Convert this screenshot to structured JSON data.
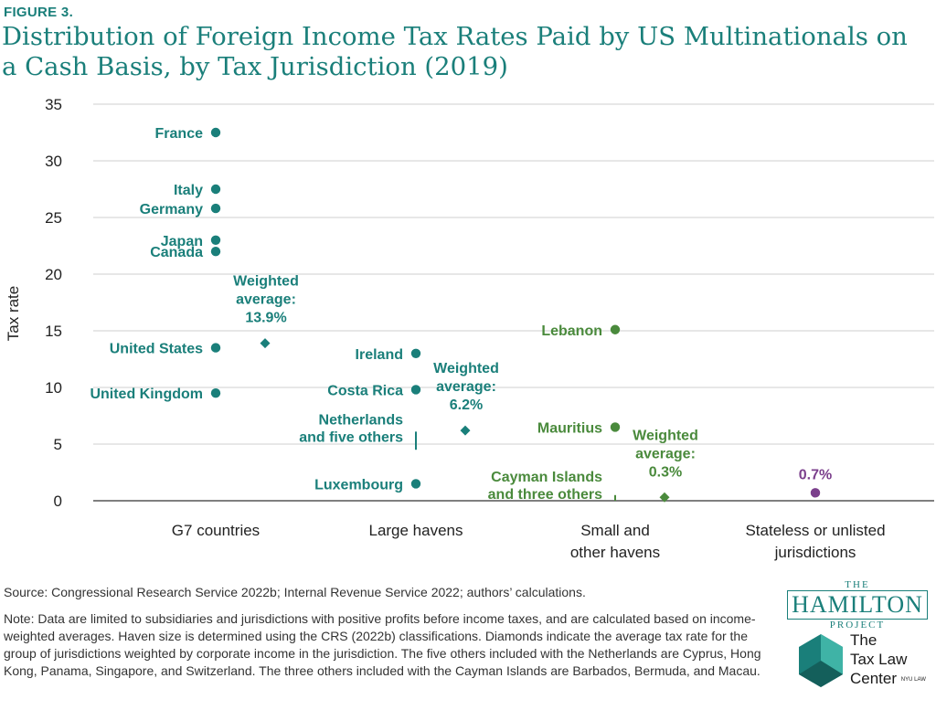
{
  "figure_label": "FIGURE 3.",
  "title": "Distribution of Foreign Income Tax Rates Paid by US Multinationals on a Cash Basis, by Tax Jurisdiction (2019)",
  "source": "Source: Congressional Research Service 2022b; Internal Revenue Service 2022; authors’ calculations.",
  "note": "Note: Data are limited to subsidiaries and jurisdictions with positive profits before income taxes, and are calculated based on income-weighted averages. Haven size is determined using the CRS (2022b) classifications. Diamonds indicate the average tax rate for the group of jurisdictions weighted by corporate income in the jurisdiction. The five others included with the Netherlands are Cyprus, Hong Kong, Panama, Singapore, and Switzerland. The three others included with the Cayman Islands are Barbados, Bermuda, and Macau.",
  "logos": {
    "hamilton_small_top": "THE",
    "hamilton_big": "HAMILTON",
    "hamilton_small_bottom": "PROJECT",
    "tlc_line1": "The",
    "tlc_line2": "Tax Law",
    "tlc_line3": "Center",
    "tlc_nyu": "NYU LAW"
  },
  "colors": {
    "teal": "#1a7f7a",
    "green": "#4a8a3c",
    "purple": "#7b3f8c",
    "grid": "#cfcfcf",
    "axis": "#555555"
  },
  "chart_data": {
    "type": "scatter",
    "ylabel": "Tax rate",
    "xlabel": "",
    "ylim": [
      0,
      35
    ],
    "yticks": [
      0,
      5,
      10,
      15,
      20,
      25,
      30,
      35
    ],
    "grid": true,
    "categories": [
      {
        "lines": [
          "G7 countries"
        ],
        "color": "#1a7f7a"
      },
      {
        "lines": [
          "Large havens"
        ],
        "color": "#1a7f7a"
      },
      {
        "lines": [
          "Small and",
          "other havens"
        ],
        "color": "#4a8a3c"
      },
      {
        "lines": [
          "Stateless or unlisted",
          "jurisdictions"
        ],
        "color": "#7b3f8c"
      }
    ],
    "points": [
      {
        "category": 0,
        "label": "France",
        "y": 32.5,
        "marker": "dot"
      },
      {
        "category": 0,
        "label": "Italy",
        "y": 27.5,
        "marker": "dot"
      },
      {
        "category": 0,
        "label": "Germany",
        "y": 25.8,
        "marker": "dot"
      },
      {
        "category": 0,
        "label": "Japan",
        "y": 23.0,
        "marker": "dot"
      },
      {
        "category": 0,
        "label": "Canada",
        "y": 22.0,
        "marker": "dot"
      },
      {
        "category": 0,
        "label": "United States",
        "y": 13.5,
        "marker": "dot"
      },
      {
        "category": 0,
        "label": "United Kingdom",
        "y": 9.5,
        "marker": "dot"
      },
      {
        "category": 1,
        "label": "Ireland",
        "y": 13.0,
        "marker": "dot"
      },
      {
        "category": 1,
        "label": "Costa Rica",
        "y": 9.8,
        "marker": "dot"
      },
      {
        "category": 1,
        "label": "Netherlands|and five others",
        "y_range": [
          4.5,
          6.1
        ],
        "marker": "range"
      },
      {
        "category": 1,
        "label": "Luxembourg",
        "y": 1.5,
        "marker": "dot"
      },
      {
        "category": 2,
        "label": "Lebanon",
        "y": 15.1,
        "marker": "dot"
      },
      {
        "category": 2,
        "label": "Mauritius",
        "y": 6.5,
        "marker": "dot"
      },
      {
        "category": 2,
        "label": "Cayman Islands|and three others",
        "y_range": [
          0,
          0.5
        ],
        "marker": "range"
      },
      {
        "category": 3,
        "label": "0.7%",
        "y": 0.7,
        "marker": "dot"
      }
    ],
    "weighted_averages": [
      {
        "category": 0,
        "value": 13.9,
        "label": "Weighted|average:|13.9%"
      },
      {
        "category": 1,
        "value": 6.2,
        "label": "Weighted|average:|6.2%"
      },
      {
        "category": 2,
        "value": 0.3,
        "label": "Weighted|average:|0.3%"
      }
    ]
  }
}
